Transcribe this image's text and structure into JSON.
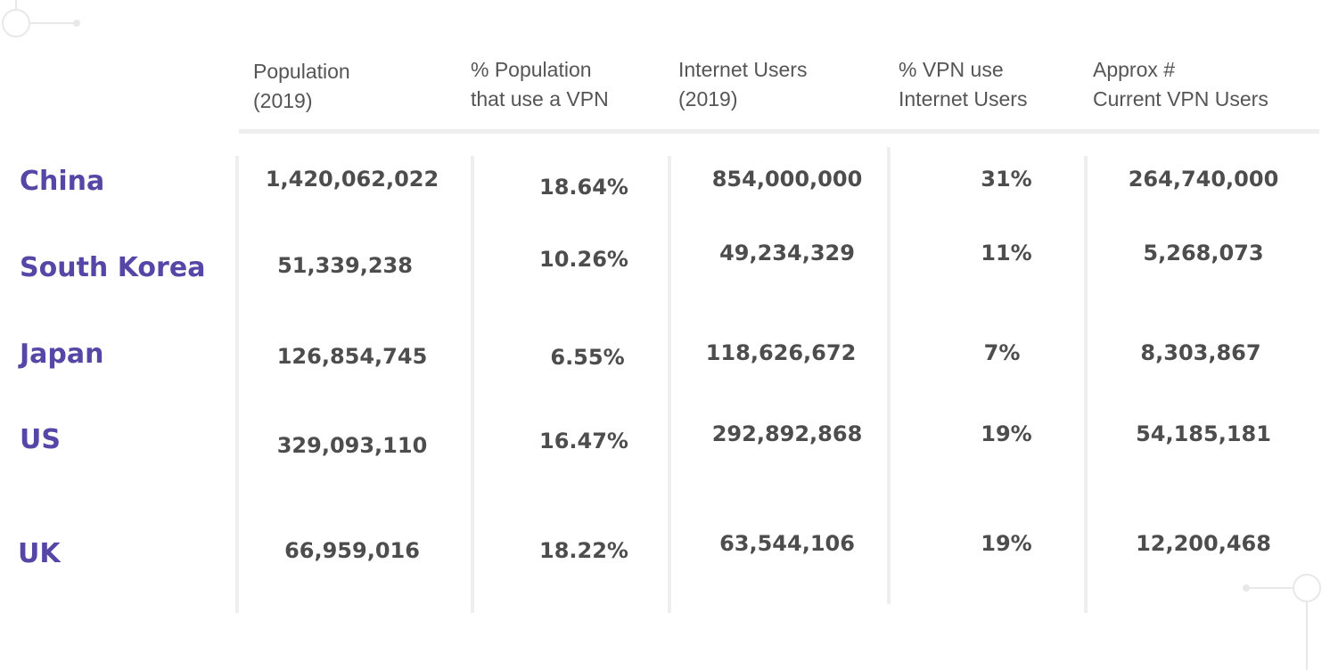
{
  "chart_data": {
    "type": "table",
    "columns": [
      {
        "line1": "Population",
        "line2": "(2019)"
      },
      {
        "line1": "% Population",
        "line2": "that use a VPN"
      },
      {
        "line1": "Internet Users",
        "line2": "(2019)"
      },
      {
        "line1": "% VPN use",
        "line2": "Internet Users"
      },
      {
        "line1": "Approx #",
        "line2": "Current VPN Users"
      }
    ],
    "rows": [
      {
        "country": "China",
        "values": [
          "1,420,062,022",
          "18.64%",
          "854,000,000",
          "31%",
          "264,740,000"
        ]
      },
      {
        "country": "South Korea",
        "values": [
          "51,339,238",
          "10.26%",
          "49,234,329",
          "11%",
          "5,268,073"
        ]
      },
      {
        "country": "Japan",
        "values": [
          "126,854,745",
          "6.55%",
          "118,626,672",
          "7%",
          "8,303,867"
        ]
      },
      {
        "country": "US",
        "values": [
          "329,093,110",
          "16.47%",
          "292,892,868",
          "19%",
          "54,185,181"
        ]
      },
      {
        "country": "UK",
        "values": [
          "66,959,016",
          "18.22%",
          "63,544,106",
          "19%",
          "12,200,468"
        ]
      }
    ]
  },
  "colors": {
    "country_text": "#5646a6",
    "value_text": "#4d4d4d",
    "header_text": "#555555",
    "divider": "#eeeeee",
    "decoration": "#e6e6e6"
  }
}
